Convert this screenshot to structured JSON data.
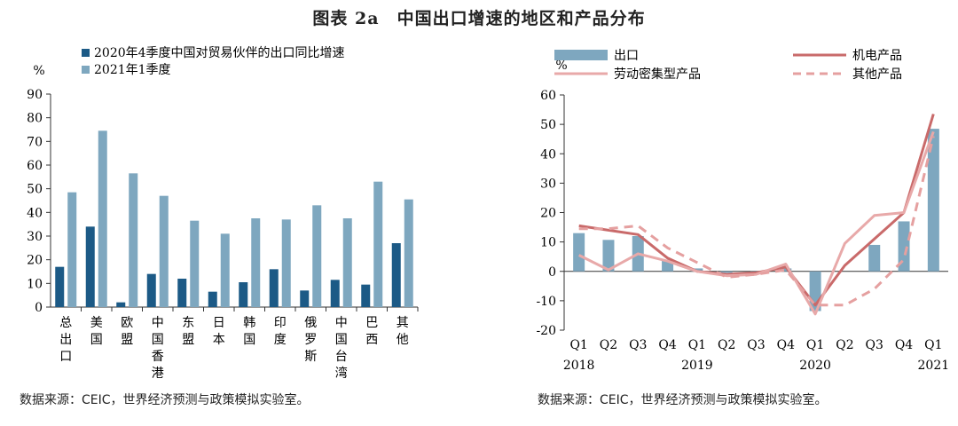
{
  "figure_title": "图表 2a　中国出口增速的地区和产品分布",
  "charts": [
    {
      "chart_data": {
        "type": "bar",
        "y_unit_label": "%",
        "ylim": [
          0,
          90
        ],
        "yticks": [
          0,
          10,
          20,
          30,
          40,
          50,
          60,
          70,
          80,
          90
        ],
        "categories": [
          "总出口",
          "美国",
          "欧盟",
          "中国香港",
          "东盟",
          "日本",
          "韩国",
          "印度",
          "俄罗斯",
          "中国台湾",
          "巴西",
          "其他"
        ],
        "series": [
          {
            "name": "2020年4季度中国对贸易伙伴的出口同比增速",
            "color": "#1c5a86",
            "values": [
              17,
              34,
              2,
              14,
              12,
              6.5,
              10.5,
              16,
              7,
              11.5,
              9.5,
              27
            ]
          },
          {
            "name": "2021年1季度",
            "color": "#7ea7bf",
            "values": [
              48.5,
              74.5,
              56.5,
              47,
              36.5,
              31,
              37.5,
              37,
              43,
              37.5,
              53,
              45.5
            ]
          }
        ],
        "legend_position": "top"
      },
      "source": "数据来源：CEIC，世界经济预测与政策模拟实验室。"
    },
    {
      "chart_data": {
        "type": "bar+line",
        "y_unit_label": "%",
        "ylim": [
          -20,
          60
        ],
        "yticks": [
          -20,
          -10,
          0,
          10,
          20,
          30,
          40,
          50,
          60
        ],
        "quarters": [
          "Q1",
          "Q2",
          "Q3",
          "Q4",
          "Q1",
          "Q2",
          "Q3",
          "Q4",
          "Q1",
          "Q2",
          "Q3",
          "Q4",
          "Q1"
        ],
        "years": [
          {
            "label": "2018",
            "index": 0
          },
          {
            "label": "2019",
            "index": 4
          },
          {
            "label": "2020",
            "index": 8
          },
          {
            "label": "2021",
            "index": 12
          }
        ],
        "bars": {
          "name": "出口",
          "color": "#7ea7bf",
          "values": [
            13,
            10.7,
            12,
            4,
            1,
            -0.5,
            -0.5,
            1,
            -13.5,
            0,
            9,
            17,
            48.5
          ]
        },
        "lines": [
          {
            "name": "机电产品",
            "color": "#c96a6a",
            "dash": false,
            "width": 3,
            "values": [
              15.5,
              14,
              12.5,
              4.5,
              0,
              -1,
              -0.5,
              1.5,
              -11.5,
              2,
              11,
              20,
              53.5
            ]
          },
          {
            "name": "劳动密集型产品",
            "color": "#e8a9a9",
            "dash": false,
            "width": 3,
            "values": [
              5.5,
              0.5,
              6,
              3.5,
              0,
              -1.5,
              -1,
              2.5,
              -14.5,
              9.5,
              19,
              20,
              47.5
            ]
          },
          {
            "name": "其他产品",
            "color": "#e5a0a0",
            "dash": true,
            "width": 3,
            "values": [
              14.5,
              14.5,
              15.5,
              8,
              3,
              -2,
              -1,
              0.5,
              -11.5,
              -11.5,
              -6,
              4,
              46
            ]
          }
        ],
        "legend_position": "top"
      },
      "source": "数据来源：CEIC，世界经济预测与政策模拟实验室。"
    }
  ]
}
